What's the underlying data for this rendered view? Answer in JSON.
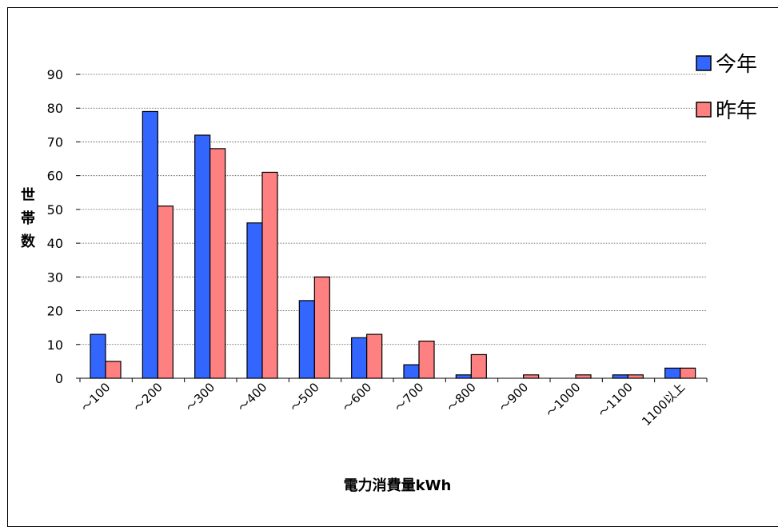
{
  "chart_data": {
    "type": "bar",
    "title": "",
    "xlabel": "電力消費量kWh",
    "ylabel": "世帯数",
    "ylim": [
      0,
      90
    ],
    "yticks": [
      0,
      10,
      20,
      30,
      40,
      50,
      60,
      70,
      80,
      90
    ],
    "grid": true,
    "legend_position": "top-right",
    "categories": [
      "～100",
      "～200",
      "～300",
      "～400",
      "～500",
      "～600",
      "～700",
      "～800",
      "～900",
      "～1000",
      "～1100",
      "1100以上"
    ],
    "series": [
      {
        "name": "今年",
        "color": "#3366ff",
        "values": [
          13,
          79,
          72,
          46,
          23,
          12,
          4,
          1,
          0,
          0,
          1,
          3
        ]
      },
      {
        "name": "昨年",
        "color": "#ff8080",
        "values": [
          5,
          51,
          68,
          61,
          30,
          13,
          11,
          7,
          1,
          1,
          1,
          3
        ]
      }
    ]
  }
}
